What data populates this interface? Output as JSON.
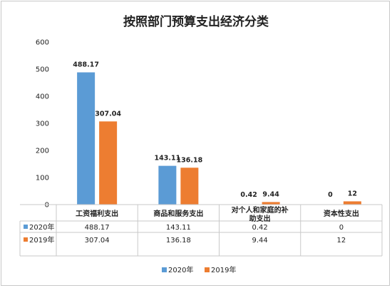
{
  "chart_data": {
    "type": "bar",
    "title": "按照部门预算支出经济分类",
    "categories": [
      [
        "工资福利支出"
      ],
      [
        "商品和服务支出"
      ],
      [
        "对个人和家庭的补",
        "助支出"
      ],
      [
        "资本性支出"
      ]
    ],
    "series": [
      {
        "name": "2020年",
        "color": "#5b9bd5",
        "values": [
          488.17,
          143.11,
          0.42,
          0
        ],
        "labels": [
          "488.17",
          "143.11",
          "0.42",
          "0"
        ]
      },
      {
        "name": "2019年",
        "color": "#ed7d31",
        "values": [
          307.04,
          136.18,
          9.44,
          12
        ],
        "labels": [
          "307.04",
          "136.18",
          "9.44",
          "12"
        ]
      }
    ],
    "ylim": [
      0,
      600
    ],
    "yticks": [
      0,
      100,
      200,
      300,
      400,
      500,
      600
    ],
    "grid": false,
    "data_table": true,
    "legend_position": "bottom"
  }
}
